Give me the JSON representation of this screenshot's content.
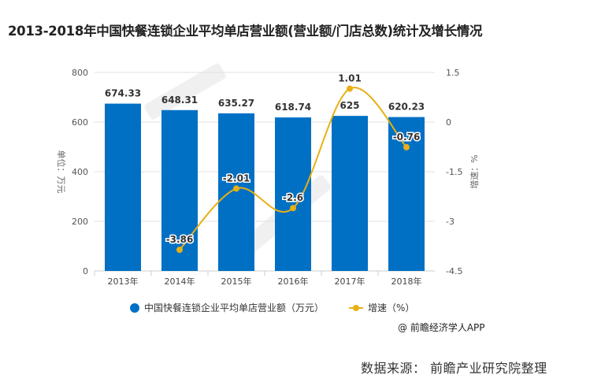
{
  "title": "2013-2018年中国快餐连锁企业平均单店营业额(营业额/门店总数)统计及增长情况",
  "chart_data": {
    "type": "bar+line",
    "categories": [
      "2013年",
      "2014年",
      "2015年",
      "2016年",
      "2017年",
      "2018年"
    ],
    "series": [
      {
        "name": "中国快餐连锁企业平均单店营业额（万元）",
        "type": "bar",
        "axis": "left",
        "values": [
          674.33,
          648.31,
          635.27,
          618.74,
          625,
          620.23
        ],
        "labels": [
          "674.33",
          "648.31",
          "635.27",
          "618.74",
          "625",
          "620.23"
        ],
        "color": "#0070c4"
      },
      {
        "name": "增速（%）",
        "type": "line",
        "axis": "right",
        "values": [
          null,
          -3.86,
          -2.01,
          -2.6,
          1.01,
          -0.76
        ],
        "labels": [
          null,
          "-3.86",
          "-2.01",
          "-2.6",
          "1.01",
          "-0.76"
        ],
        "color": "#e8b014"
      }
    ],
    "left_axis": {
      "label": "单位：万元",
      "range": [
        0,
        800
      ],
      "ticks": [
        "0",
        "200",
        "400",
        "600",
        "800"
      ]
    },
    "right_axis": {
      "label": "增速：%",
      "range": [
        -4.5,
        1.5
      ],
      "ticks": [
        "-4.5",
        "-3",
        "-1.5",
        "0",
        "1.5"
      ]
    },
    "grid": true,
    "legend": "bottom"
  },
  "legend": {
    "bar": "中国快餐连锁企业平均单店营业额（万元）",
    "line": "增速（%）"
  },
  "credit": "@ 前瞻经济学人APP",
  "source": "数据来源：  前瞻产业研究院整理",
  "watermark": "前瞻产业研究院"
}
